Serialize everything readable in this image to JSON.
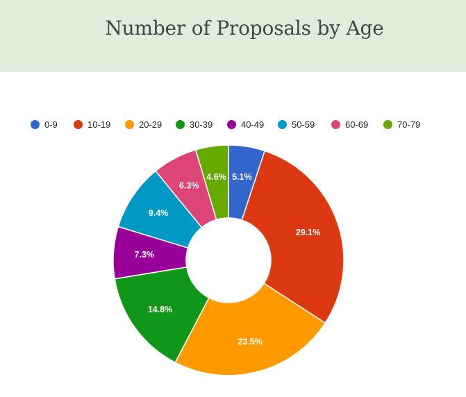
{
  "chart_data": {
    "type": "pie",
    "title": "Number of Proposals by Age",
    "legend_position": "top",
    "donut": true,
    "start_angle_deg": 0,
    "direction": "clockwise",
    "slices": [
      {
        "label": "0-9",
        "value": 5.1,
        "display": "5.1%",
        "color": "#3366cc"
      },
      {
        "label": "10-19",
        "value": 29.1,
        "display": "29.1%",
        "color": "#dc3912"
      },
      {
        "label": "20-29",
        "value": 23.5,
        "display": "23.5%",
        "color": "#ff9900"
      },
      {
        "label": "30-39",
        "value": 14.8,
        "display": "14.8%",
        "color": "#109618"
      },
      {
        "label": "40-49",
        "value": 7.3,
        "display": "7.3%",
        "color": "#990099"
      },
      {
        "label": "50-59",
        "value": 9.4,
        "display": "9.4%",
        "color": "#0099c6"
      },
      {
        "label": "60-69",
        "value": 6.3,
        "display": "6.3%",
        "color": "#dd4477"
      },
      {
        "label": "70-79",
        "value": 4.6,
        "display": "4.6%",
        "color": "#66aa00"
      }
    ]
  },
  "colors": {
    "header_background": "#e2eedc",
    "title_text": "#3b4a47"
  }
}
